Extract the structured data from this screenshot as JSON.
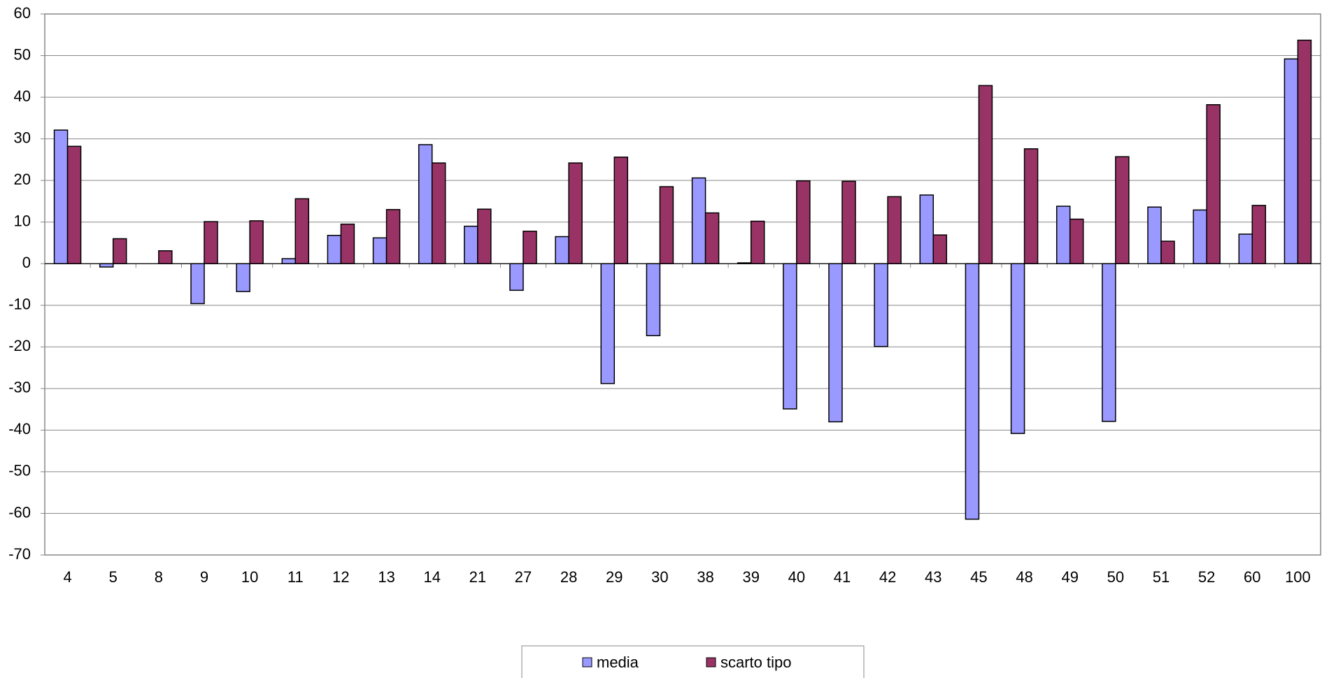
{
  "chart_data": {
    "type": "bar",
    "categories": [
      "4",
      "5",
      "8",
      "9",
      "10",
      "11",
      "12",
      "13",
      "14",
      "21",
      "27",
      "28",
      "29",
      "30",
      "38",
      "39",
      "40",
      "41",
      "42",
      "43",
      "45",
      "48",
      "49",
      "50",
      "51",
      "52",
      "60",
      "100"
    ],
    "series": [
      {
        "name": "media",
        "color": "#9999ff",
        "values": [
          32.1,
          -0.8,
          0,
          -9.6,
          -6.7,
          1.2,
          6.8,
          6.2,
          28.6,
          9.0,
          -6.4,
          6.5,
          -28.8,
          -17.3,
          20.6,
          0.2,
          -34.9,
          -38.0,
          -19.9,
          16.5,
          -61.4,
          -40.8,
          13.8,
          -37.9,
          13.6,
          12.9,
          7.1,
          49.2
        ]
      },
      {
        "name": "scarto tipo",
        "color": "#993366",
        "values": [
          28.2,
          6.0,
          3.1,
          10.1,
          10.3,
          15.6,
          9.5,
          13.0,
          24.2,
          13.1,
          7.8,
          24.2,
          25.6,
          18.5,
          12.2,
          10.2,
          19.9,
          19.8,
          16.1,
          6.9,
          42.8,
          27.6,
          10.7,
          25.7,
          5.4,
          38.2,
          14.0,
          53.7
        ]
      }
    ],
    "ylim": [
      -70,
      60
    ],
    "yticks": [
      -70,
      -60,
      -50,
      -40,
      -30,
      -20,
      -10,
      0,
      10,
      20,
      30,
      40,
      50,
      60
    ],
    "grid": true,
    "legend": "bottom"
  }
}
